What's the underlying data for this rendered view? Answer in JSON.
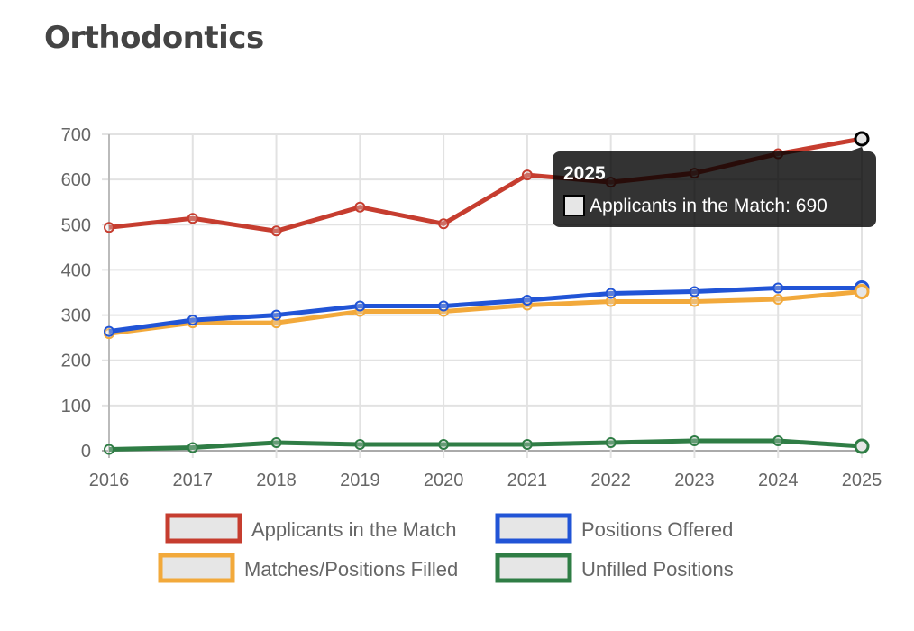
{
  "page": {
    "title": "Orthodontics"
  },
  "chart_data": {
    "type": "line",
    "title": "Orthodontics",
    "xlabel": "",
    "ylabel": "",
    "x": [
      "2016",
      "2017",
      "2018",
      "2019",
      "2020",
      "2021",
      "2022",
      "2023",
      "2024",
      "2025"
    ],
    "ylim": [
      0,
      700
    ],
    "yticks": [
      0,
      100,
      200,
      300,
      400,
      500,
      600,
      700
    ],
    "grid": true,
    "legend_position": "bottom",
    "series": [
      {
        "name": "Applicants in the Match",
        "color": "#c63d2f",
        "values": [
          494,
          514,
          486,
          539,
          502,
          610,
          594,
          614,
          657,
          690
        ]
      },
      {
        "name": "Positions Offered",
        "color": "#2154d6",
        "values": [
          264,
          289,
          300,
          320,
          320,
          333,
          348,
          352,
          360,
          360
        ]
      },
      {
        "name": "Matches/Positions Filled",
        "color": "#f2a93b",
        "values": [
          259,
          283,
          283,
          308,
          308,
          322,
          330,
          330,
          335,
          352
        ]
      },
      {
        "name": "Unfilled Positions",
        "color": "#2f7d45",
        "values": [
          3,
          7,
          18,
          14,
          14,
          14,
          18,
          22,
          22,
          10
        ]
      }
    ],
    "tooltip": {
      "title": "2025",
      "label": "Applicants in the Match: 690",
      "series_index": 0,
      "point_index": 9
    }
  }
}
